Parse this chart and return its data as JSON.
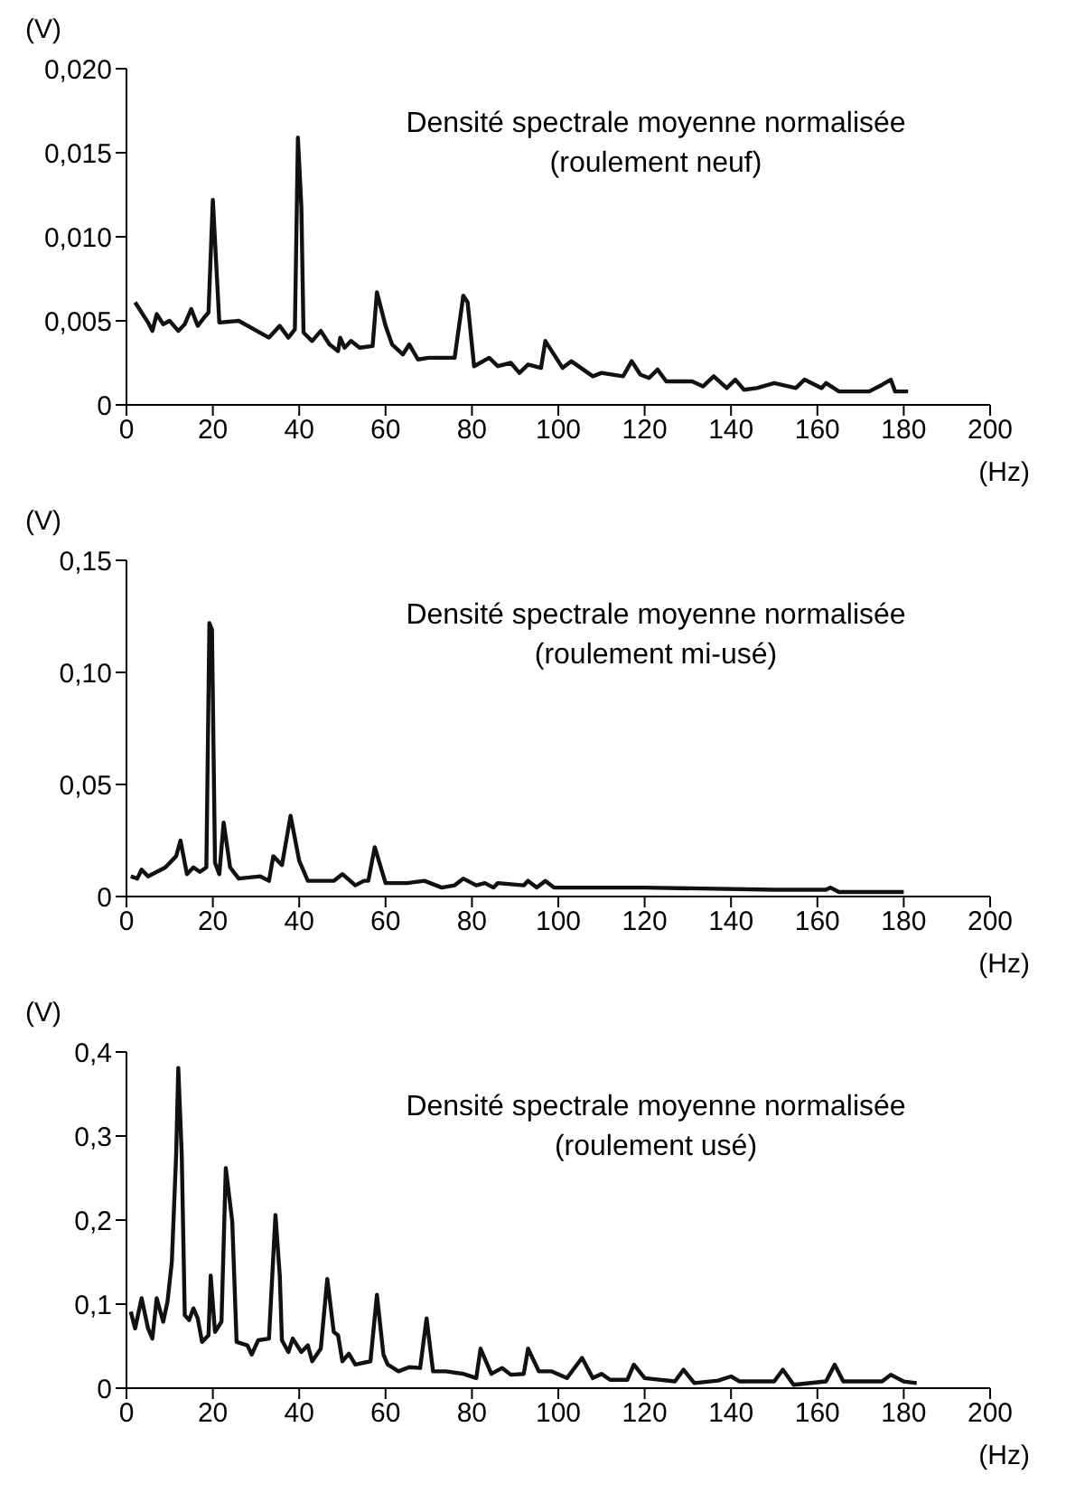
{
  "chart_data": [
    {
      "type": "line",
      "title": "Densité spectrale moyenne normalisée",
      "subtitle": "(roulement neuf)",
      "xlabel": "(Hz)",
      "ylabel": "(V)",
      "marker": "none",
      "color": "#111111",
      "x": [
        2,
        5,
        6,
        7,
        8.5,
        10,
        11,
        12,
        13.5,
        15,
        16.5,
        18,
        19,
        20,
        21.5,
        26,
        33,
        35.5,
        37.5,
        39,
        39.7,
        40.5,
        41,
        43,
        45,
        47,
        49,
        49.5,
        50.5,
        52,
        54,
        57,
        58,
        60,
        61.5,
        64,
        65.5,
        67.5,
        70,
        76,
        78,
        79,
        80.5,
        84,
        86,
        89,
        91,
        93,
        96,
        97,
        101,
        103,
        108,
        110,
        115,
        117,
        119,
        121,
        123,
        125,
        131,
        133.5,
        136,
        139,
        141,
        143,
        146,
        150,
        155,
        157,
        161,
        162,
        165,
        172,
        175,
        177,
        178,
        181
      ],
      "values": [
        0.0061,
        0.0049,
        0.0044,
        0.0054,
        0.0048,
        0.005,
        0.0047,
        0.0044,
        0.0048,
        0.0057,
        0.0047,
        0.0052,
        0.0055,
        0.0122,
        0.0049,
        0.005,
        0.004,
        0.0047,
        0.004,
        0.0045,
        0.0159,
        0.0118,
        0.0043,
        0.0038,
        0.0044,
        0.0036,
        0.0032,
        0.004,
        0.0034,
        0.0038,
        0.0034,
        0.0035,
        0.0067,
        0.0047,
        0.0036,
        0.003,
        0.0036,
        0.0027,
        0.0028,
        0.0028,
        0.0065,
        0.0061,
        0.0023,
        0.0028,
        0.0023,
        0.0025,
        0.0019,
        0.0024,
        0.0022,
        0.0038,
        0.0022,
        0.0026,
        0.0017,
        0.0019,
        0.0017,
        0.0026,
        0.0018,
        0.0016,
        0.0021,
        0.0014,
        0.0014,
        0.0011,
        0.0017,
        0.001,
        0.0015,
        0.0009,
        0.001,
        0.0013,
        0.001,
        0.0015,
        0.001,
        0.0013,
        0.0008,
        0.0008,
        0.0012,
        0.0015,
        0.0008,
        0.0008
      ],
      "xlim": [
        0,
        200
      ],
      "xticks": [
        0,
        20,
        40,
        60,
        80,
        100,
        120,
        140,
        160,
        180,
        200
      ],
      "ylim": [
        0,
        0.02
      ],
      "yticks": [
        {
          "value": 0,
          "label": "0"
        },
        {
          "value": 0.005,
          "label": "0,005"
        },
        {
          "value": 0.01,
          "label": "0,010"
        },
        {
          "value": 0.015,
          "label": "0,015"
        },
        {
          "value": 0.02,
          "label": "0,020"
        }
      ]
    },
    {
      "type": "line",
      "title": "Densité spectrale moyenne normalisée",
      "subtitle": "(roulement mi-usé)",
      "xlabel": "(Hz)",
      "ylabel": "(V)",
      "marker": "none",
      "color": "#111111",
      "x": [
        1,
        2.5,
        3.5,
        5,
        9,
        11.5,
        12.5,
        14,
        15.5,
        17,
        18.5,
        19.2,
        19.8,
        20.5,
        21.5,
        22.5,
        24,
        26,
        31,
        33,
        34,
        36,
        38,
        40,
        42,
        48,
        50,
        53,
        55,
        56,
        57.5,
        60,
        65,
        69,
        73,
        76,
        78,
        81,
        83,
        85,
        86,
        92,
        93,
        95,
        97,
        99,
        120,
        150,
        162,
        163,
        165,
        180
      ],
      "values": [
        0.009,
        0.008,
        0.012,
        0.009,
        0.013,
        0.018,
        0.025,
        0.01,
        0.013,
        0.011,
        0.013,
        0.122,
        0.119,
        0.015,
        0.01,
        0.033,
        0.013,
        0.008,
        0.009,
        0.007,
        0.018,
        0.014,
        0.036,
        0.016,
        0.007,
        0.007,
        0.01,
        0.005,
        0.007,
        0.007,
        0.022,
        0.006,
        0.006,
        0.007,
        0.004,
        0.005,
        0.008,
        0.005,
        0.006,
        0.004,
        0.006,
        0.005,
        0.007,
        0.004,
        0.007,
        0.004,
        0.004,
        0.003,
        0.003,
        0.004,
        0.002,
        0.002
      ],
      "xlim": [
        0,
        200
      ],
      "xticks": [
        0,
        20,
        40,
        60,
        80,
        100,
        120,
        140,
        160,
        180,
        200
      ],
      "ylim": [
        0,
        0.15
      ],
      "yticks": [
        {
          "value": 0,
          "label": "0"
        },
        {
          "value": 0.05,
          "label": "0,05"
        },
        {
          "value": 0.1,
          "label": "0,10"
        },
        {
          "value": 0.15,
          "label": "0,15"
        }
      ]
    },
    {
      "type": "line",
      "title": "Densité spectrale moyenne normalisée",
      "subtitle": "(roulement usé)",
      "xlabel": "(Hz)",
      "ylabel": "(V)",
      "marker": "none",
      "color": "#111111",
      "x": [
        1,
        2,
        3.5,
        5,
        6,
        7,
        8.5,
        9.5,
        10.5,
        11.5,
        12,
        12.8,
        13.5,
        14.5,
        15.5,
        16.5,
        17.5,
        19,
        19.5,
        20.5,
        22,
        23,
        24.5,
        25.5,
        28,
        29,
        30.5,
        33,
        34.5,
        35.5,
        36,
        37.5,
        38.5,
        40.5,
        42,
        43,
        45,
        46.5,
        48,
        49,
        50,
        51.5,
        53,
        56.5,
        58,
        59.5,
        60.5,
        63,
        65.5,
        68,
        69.5,
        71,
        74,
        78,
        81,
        82,
        84.5,
        87,
        89,
        92,
        93,
        95.5,
        98.5,
        102,
        105.5,
        108,
        110,
        112,
        116,
        117.5,
        120,
        127,
        129,
        131.5,
        137,
        140,
        142,
        150,
        152,
        154.5,
        162,
        164,
        166,
        175,
        177,
        180,
        183
      ],
      "values": [
        0.091,
        0.071,
        0.107,
        0.071,
        0.059,
        0.107,
        0.079,
        0.103,
        0.15,
        0.277,
        0.381,
        0.277,
        0.087,
        0.081,
        0.095,
        0.083,
        0.055,
        0.063,
        0.134,
        0.067,
        0.079,
        0.262,
        0.198,
        0.055,
        0.051,
        0.04,
        0.057,
        0.059,
        0.206,
        0.134,
        0.057,
        0.043,
        0.059,
        0.043,
        0.051,
        0.032,
        0.047,
        0.13,
        0.067,
        0.063,
        0.032,
        0.041,
        0.028,
        0.032,
        0.111,
        0.04,
        0.028,
        0.02,
        0.025,
        0.024,
        0.083,
        0.02,
        0.02,
        0.017,
        0.012,
        0.047,
        0.017,
        0.024,
        0.016,
        0.017,
        0.047,
        0.02,
        0.02,
        0.012,
        0.036,
        0.012,
        0.017,
        0.01,
        0.01,
        0.028,
        0.012,
        0.008,
        0.022,
        0.006,
        0.009,
        0.014,
        0.008,
        0.008,
        0.022,
        0.004,
        0.008,
        0.028,
        0.008,
        0.008,
        0.016,
        0.008,
        0.006
      ],
      "xlim": [
        0,
        200
      ],
      "xticks": [
        0,
        20,
        40,
        60,
        80,
        100,
        120,
        140,
        160,
        180,
        200
      ],
      "ylim": [
        0,
        0.4
      ],
      "yticks": [
        {
          "value": 0,
          "label": "0"
        },
        {
          "value": 0.1,
          "label": "0,1"
        },
        {
          "value": 0.2,
          "label": "0,2"
        },
        {
          "value": 0.3,
          "label": "0,3"
        },
        {
          "value": 0.4,
          "label": "0,4"
        }
      ]
    }
  ]
}
